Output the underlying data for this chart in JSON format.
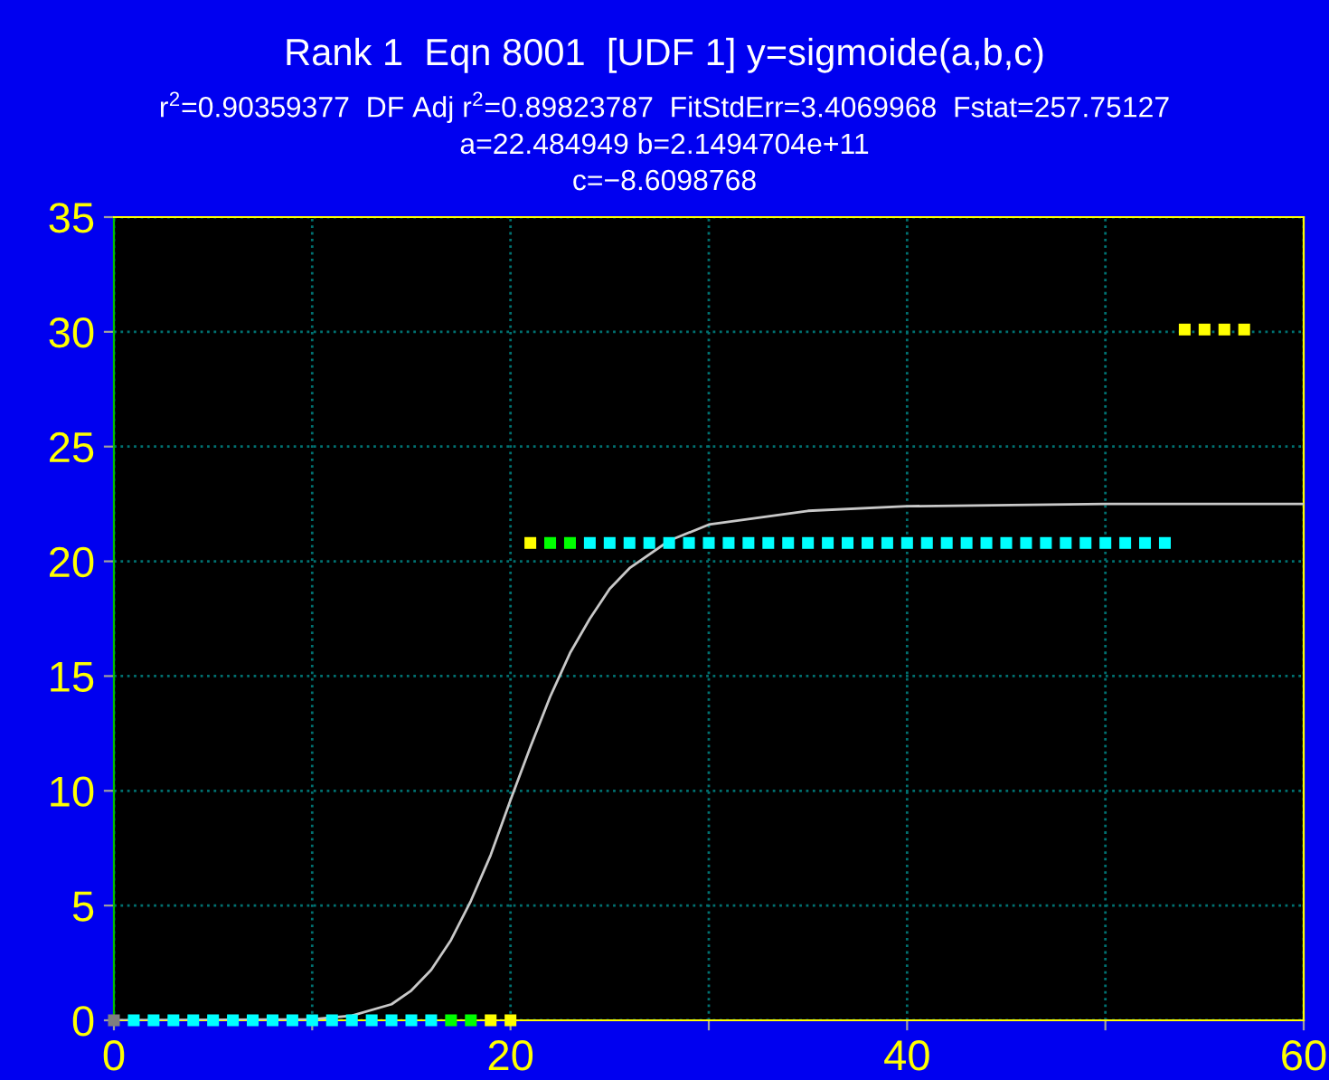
{
  "chart_data": {
    "type": "scatter",
    "title": "Rank 1  Eqn 8001  [UDF 1] y=sigmoide(a,b,c)",
    "subtitle": "r$^{2}$=0.90359377  DF Adj r$^{2}$=0.89823787  FitStdErr=3.4069968  Fstat=257.75127\na=22.484949 b=2.1494704e+11\nc=−8.6098768",
    "series": [
      {
        "marker": "square",
        "x": [
          0,
          1,
          2,
          3,
          4,
          5,
          6,
          7,
          8,
          9,
          10,
          11,
          12,
          13,
          14,
          15,
          16,
          17,
          18,
          19,
          20,
          21,
          22,
          23,
          24,
          25,
          26,
          27,
          28,
          29,
          30,
          31,
          32,
          33,
          34,
          35,
          36,
          37,
          38,
          39,
          40,
          41,
          42,
          43,
          44,
          45,
          46,
          47,
          48,
          49,
          50,
          51,
          52,
          53,
          54,
          55,
          56,
          57
        ],
        "values": [
          0,
          0,
          0,
          0,
          0,
          0,
          0,
          0,
          0,
          0,
          0,
          0,
          0,
          0,
          0,
          0,
          0,
          0,
          0,
          0,
          0,
          20.8,
          20.8,
          20.8,
          20.8,
          20.8,
          20.8,
          20.8,
          20.8,
          20.8,
          20.8,
          20.8,
          20.8,
          20.8,
          20.8,
          20.8,
          20.8,
          20.8,
          20.8,
          20.8,
          20.8,
          20.8,
          20.8,
          20.8,
          20.8,
          20.8,
          20.8,
          20.8,
          20.8,
          20.8,
          20.8,
          20.8,
          20.8,
          20.8,
          30.1,
          30.1,
          30.1,
          30.1
        ],
        "colors": [
          "#808080",
          "#00ffff",
          "#00ffff",
          "#00ffff",
          "#00ffff",
          "#00ffff",
          "#00ffff",
          "#00ffff",
          "#00ffff",
          "#00ffff",
          "#00ffff",
          "#00ffff",
          "#00ffff",
          "#00ffff",
          "#00ffff",
          "#00ffff",
          "#00ffff",
          "#00ff00",
          "#00ff00",
          "#ffff00",
          "#ffff00",
          "#ffff00",
          "#00ff00",
          "#00ff00",
          "#00ffff",
          "#00ffff",
          "#00ffff",
          "#00ffff",
          "#00ffff",
          "#00ffff",
          "#00ffff",
          "#00ffff",
          "#00ffff",
          "#00ffff",
          "#00ffff",
          "#00ffff",
          "#00ffff",
          "#00ffff",
          "#00ffff",
          "#00ffff",
          "#00ffff",
          "#00ffff",
          "#00ffff",
          "#00ffff",
          "#00ffff",
          "#00ffff",
          "#00ffff",
          "#00ffff",
          "#00ffff",
          "#00ffff",
          "#00ffff",
          "#00ffff",
          "#00ffff",
          "#00ffff",
          "#ffff00",
          "#ffff00",
          "#ffff00",
          "#ffff00"
        ]
      },
      {
        "type": "line",
        "color": "#c8c8c8",
        "line_style": "solid",
        "x": [
          0,
          10,
          12,
          14,
          15,
          16,
          17,
          18,
          19,
          20,
          21,
          22,
          23,
          24,
          25,
          26,
          28,
          30,
          35,
          40,
          50,
          60
        ],
        "values": [
          0,
          0.04,
          0.2,
          0.7,
          1.3,
          2.2,
          3.5,
          5.2,
          7.2,
          9.6,
          11.9,
          14.1,
          16.0,
          17.5,
          18.8,
          19.7,
          20.9,
          21.6,
          22.2,
          22.4,
          22.5,
          22.5
        ]
      }
    ],
    "xlim": [
      0,
      60
    ],
    "ylim": [
      0,
      35
    ],
    "xticks": [
      0,
      {
        "value": 10,
        "label": null
      },
      20,
      {
        "value": 30,
        "label": null
      },
      40,
      {
        "value": 50,
        "label": null
      },
      60
    ],
    "yticks": [
      0,
      5,
      10,
      15,
      20,
      25,
      30,
      35
    ],
    "grid": true,
    "legend": false
  }
}
